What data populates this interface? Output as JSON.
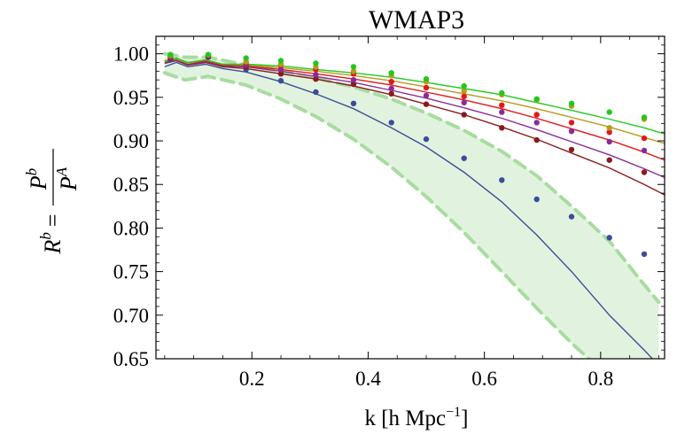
{
  "chart_data": {
    "type": "line",
    "title": "WMAP3",
    "xlabel": "k [h Mpc",
    "xlabel_sup": "−1",
    "xlabel_close": "]",
    "ylabel": {
      "lhs": "R",
      "lhs_sup": "b",
      "eq": "=",
      "num": "P",
      "num_sup": "b",
      "den": "P",
      "den_sup": "A"
    },
    "xlim": [
      0.035,
      0.91
    ],
    "ylim": [
      0.65,
      1.02
    ],
    "x_ticks": [
      0.2,
      0.4,
      0.6,
      0.8
    ],
    "x_tick_labels": [
      "0.2",
      "0.4",
      "0.6",
      "0.8"
    ],
    "y_ticks": [
      0.65,
      0.7,
      0.75,
      0.8,
      0.85,
      0.9,
      0.95,
      1.0
    ],
    "y_tick_labels": [
      "0.65",
      "0.70",
      "0.75",
      "0.80",
      "0.85",
      "0.90",
      "0.95",
      "1.00"
    ],
    "band": {
      "color": "#a8dca0",
      "x": [
        0.05,
        0.085,
        0.125,
        0.19,
        0.25,
        0.31,
        0.375,
        0.44,
        0.5,
        0.565,
        0.63,
        0.69,
        0.75,
        0.815,
        0.875,
        0.9
      ],
      "upper": [
        1.0,
        0.996,
        0.996,
        0.987,
        0.98,
        0.972,
        0.962,
        0.948,
        0.932,
        0.912,
        0.888,
        0.86,
        0.825,
        0.785,
        0.735,
        0.715
      ],
      "lower": [
        0.978,
        0.97,
        0.974,
        0.964,
        0.948,
        0.928,
        0.902,
        0.87,
        0.836,
        0.795,
        0.75,
        0.708,
        0.668,
        0.628,
        0.59,
        0.575
      ]
    },
    "series": [
      {
        "color": "#3d4c9a",
        "x": [
          0.05,
          0.07,
          0.09,
          0.12,
          0.15,
          0.19,
          0.25,
          0.31,
          0.375,
          0.44,
          0.5,
          0.565,
          0.63,
          0.69,
          0.75,
          0.815,
          0.875,
          0.91
        ],
        "y": [
          0.985,
          0.99,
          0.985,
          0.988,
          0.983,
          0.979,
          0.968,
          0.954,
          0.937,
          0.915,
          0.893,
          0.864,
          0.83,
          0.792,
          0.75,
          0.7,
          0.66,
          0.635
        ],
        "points_x": [
          0.06,
          0.125,
          0.19,
          0.25,
          0.31,
          0.375,
          0.44,
          0.5,
          0.565,
          0.63,
          0.69,
          0.75,
          0.815,
          0.875
        ],
        "points_y": [
          0.993,
          0.996,
          0.982,
          0.969,
          0.956,
          0.943,
          0.921,
          0.902,
          0.88,
          0.855,
          0.833,
          0.813,
          0.789,
          0.77
        ]
      },
      {
        "color": "#8a1a1a",
        "x": [
          0.05,
          0.07,
          0.09,
          0.12,
          0.15,
          0.19,
          0.25,
          0.31,
          0.375,
          0.44,
          0.5,
          0.565,
          0.63,
          0.69,
          0.75,
          0.815,
          0.875,
          0.91
        ],
        "y": [
          0.989,
          0.992,
          0.987,
          0.99,
          0.985,
          0.983,
          0.977,
          0.971,
          0.963,
          0.953,
          0.942,
          0.93,
          0.916,
          0.902,
          0.886,
          0.869,
          0.85,
          0.838
        ],
        "points_x": [
          0.06,
          0.125,
          0.19,
          0.25,
          0.31,
          0.375,
          0.44,
          0.5,
          0.565,
          0.63,
          0.69,
          0.75,
          0.815,
          0.875
        ],
        "points_y": [
          0.995,
          0.997,
          0.985,
          0.977,
          0.971,
          0.965,
          0.954,
          0.942,
          0.93,
          0.915,
          0.901,
          0.89,
          0.878,
          0.864
        ]
      },
      {
        "color": "#8a2a9a",
        "x": [
          0.05,
          0.07,
          0.09,
          0.12,
          0.15,
          0.19,
          0.25,
          0.31,
          0.375,
          0.44,
          0.5,
          0.565,
          0.63,
          0.69,
          0.75,
          0.815,
          0.875,
          0.91
        ],
        "y": [
          0.99,
          0.993,
          0.988,
          0.991,
          0.986,
          0.985,
          0.98,
          0.974,
          0.967,
          0.958,
          0.949,
          0.938,
          0.926,
          0.913,
          0.899,
          0.884,
          0.868,
          0.858
        ],
        "points_x": [
          0.06,
          0.125,
          0.19,
          0.25,
          0.31,
          0.375,
          0.44,
          0.5,
          0.565,
          0.63,
          0.69,
          0.75,
          0.815,
          0.875
        ],
        "points_y": [
          0.996,
          0.998,
          0.987,
          0.982,
          0.976,
          0.97,
          0.96,
          0.952,
          0.944,
          0.933,
          0.921,
          0.911,
          0.899,
          0.889
        ]
      },
      {
        "color": "#e01818",
        "x": [
          0.05,
          0.07,
          0.09,
          0.12,
          0.15,
          0.19,
          0.25,
          0.31,
          0.375,
          0.44,
          0.5,
          0.565,
          0.63,
          0.69,
          0.75,
          0.815,
          0.875,
          0.91
        ],
        "y": [
          0.991,
          0.994,
          0.989,
          0.992,
          0.987,
          0.986,
          0.982,
          0.977,
          0.971,
          0.964,
          0.956,
          0.947,
          0.937,
          0.926,
          0.914,
          0.901,
          0.887,
          0.878
        ],
        "points_x": [
          0.06,
          0.125,
          0.19,
          0.25,
          0.31,
          0.375,
          0.44,
          0.5,
          0.565,
          0.63,
          0.69,
          0.75,
          0.815,
          0.875
        ],
        "points_y": [
          0.997,
          0.998,
          0.99,
          0.987,
          0.982,
          0.977,
          0.968,
          0.961,
          0.951,
          0.941,
          0.93,
          0.921,
          0.91,
          0.903
        ]
      },
      {
        "color": "#b89a1a",
        "x": [
          0.05,
          0.07,
          0.09,
          0.12,
          0.15,
          0.19,
          0.25,
          0.31,
          0.375,
          0.44,
          0.5,
          0.565,
          0.63,
          0.69,
          0.75,
          0.815,
          0.875,
          0.91
        ],
        "y": [
          0.991,
          0.994,
          0.989,
          0.993,
          0.988,
          0.987,
          0.984,
          0.98,
          0.975,
          0.969,
          0.962,
          0.954,
          0.946,
          0.937,
          0.927,
          0.916,
          0.904,
          0.897
        ],
        "points_x": [
          0.06,
          0.125,
          0.19,
          0.25,
          0.31,
          0.375,
          0.44,
          0.5,
          0.565,
          0.63,
          0.69,
          0.75,
          0.815,
          0.875
        ],
        "points_y": [
          0.998,
          0.999,
          0.991,
          0.988,
          0.985,
          0.98,
          0.975,
          0.968,
          0.957,
          0.953,
          0.947,
          0.94,
          0.915,
          0.925
        ]
      },
      {
        "color": "#22c81e",
        "x": [
          0.05,
          0.07,
          0.09,
          0.12,
          0.15,
          0.19,
          0.25,
          0.31,
          0.375,
          0.44,
          0.5,
          0.565,
          0.63,
          0.69,
          0.75,
          0.815,
          0.875,
          0.91
        ],
        "y": [
          0.992,
          0.995,
          0.99,
          0.993,
          0.988,
          0.988,
          0.986,
          0.982,
          0.978,
          0.973,
          0.967,
          0.96,
          0.953,
          0.944,
          0.935,
          0.925,
          0.915,
          0.908
        ],
        "points_x": [
          0.06,
          0.125,
          0.19,
          0.25,
          0.31,
          0.375,
          0.44,
          0.5,
          0.565,
          0.63,
          0.69,
          0.75,
          0.815,
          0.875
        ],
        "points_y": [
          0.999,
          0.999,
          0.995,
          0.992,
          0.989,
          0.985,
          0.978,
          0.971,
          0.963,
          0.955,
          0.948,
          0.943,
          0.933,
          0.927
        ]
      }
    ]
  }
}
